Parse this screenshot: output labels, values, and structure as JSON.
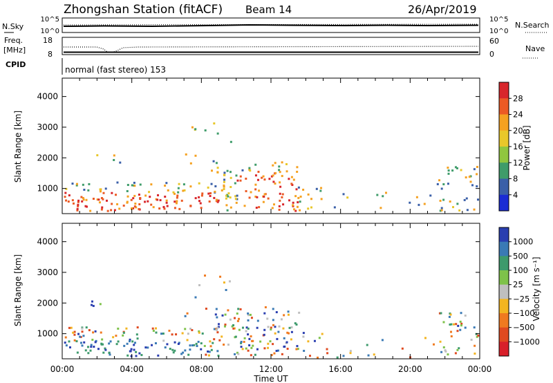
{
  "header": {
    "title": "Zhongshan Station (fitACF)",
    "beam": "Beam 14",
    "date": "26/Apr/2019"
  },
  "strips": {
    "nsky_label": "N.Sky",
    "nsky_ticks": [
      "10^5",
      "10^0"
    ],
    "nsearch_label": "N.Search",
    "nsearch_ticks": [
      "10^5",
      "10^0"
    ],
    "freq_label_1": "Freq.",
    "freq_label_2": "[MHz]",
    "freq_ticks": [
      "18",
      "8"
    ],
    "nave_label": "Nave",
    "nave_ticks": [
      "60",
      "0"
    ],
    "cpid_label": "CPID",
    "cpid_text": "normal (fast stereo) 153"
  },
  "chart_data": [
    {
      "type": "heatmap",
      "name": "power",
      "ylabel": "Slant Range [km]",
      "yticks": [
        "1000",
        "2000",
        "3000",
        "4000"
      ],
      "colorbar_label": "Power [dB]",
      "colorbar_ticks": [
        "28",
        "24",
        "20",
        "16",
        "12",
        "8",
        "4"
      ],
      "colorbar_colors": [
        "#d8262b",
        "#ec5a24",
        "#f5a121",
        "#e8c72a",
        "#90c63f",
        "#3f9c6a",
        "#3a5fa8",
        "#1a2cd4"
      ],
      "xticks": [
        "00:00",
        "04:00",
        "08:00",
        "12:00",
        "16:00",
        "20:00",
        "00:00"
      ],
      "xlim_hours": [
        0,
        24
      ],
      "ylim_km": [
        180,
        4600
      ]
    },
    {
      "type": "heatmap",
      "name": "velocity",
      "ylabel": "Slant Range [km]",
      "yticks": [
        "1000",
        "2000",
        "3000",
        "4000"
      ],
      "colorbar_label": "Velocity [m s⁻¹]",
      "colorbar_ticks": [
        "1000",
        "500",
        "100",
        "25",
        "−25",
        "−100",
        "−500",
        "−1000"
      ],
      "colorbar_colors": [
        "#2a3eb0",
        "#3a7ab5",
        "#3d9a6c",
        "#7ec24a",
        "#bfbfbf",
        "#f3b521",
        "#f07a20",
        "#e04a20",
        "#d8202a"
      ],
      "xticks": [
        "00:00",
        "04:00",
        "08:00",
        "12:00",
        "16:00",
        "20:00",
        "00:00"
      ],
      "xlim_hours": [
        0,
        24
      ],
      "ylim_km": [
        180,
        4600
      ]
    }
  ],
  "xlabel": "Time UT"
}
